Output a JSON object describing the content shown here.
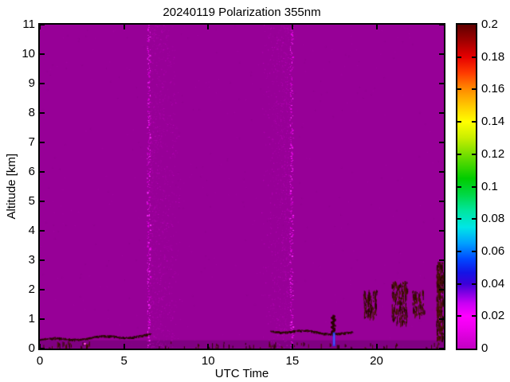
{
  "chart_data": {
    "type": "heatmap",
    "title": "20240119 Polarization 355nm",
    "xlabel": "UTC Time",
    "ylabel": "Altitude [km]",
    "xlim": [
      0,
      24
    ],
    "ylim": [
      0,
      11
    ],
    "xticks": [
      0,
      5,
      10,
      15,
      20
    ],
    "yticks": [
      0,
      1,
      2,
      3,
      4,
      5,
      6,
      7,
      8,
      9,
      10,
      11
    ],
    "grid": false,
    "legend": "none",
    "background_value_color": "#970097",
    "colorbar": {
      "position": "right",
      "range": [
        0,
        0.2
      ],
      "tick_values": [
        0,
        0.02,
        0.04,
        0.06,
        0.08,
        0.1,
        0.12,
        0.14,
        0.16,
        0.18,
        0.2
      ],
      "tick_labels": [
        "0",
        "0.02",
        "0.04",
        "0.06",
        "0.08",
        "0.1",
        "0.12",
        "0.14",
        "0.16",
        "0.18",
        "0.2"
      ],
      "stops": [
        [
          0.0,
          "#c200c2"
        ],
        [
          0.013,
          "#ee00ee"
        ],
        [
          0.02,
          "#ff00ff"
        ],
        [
          0.028,
          "#c800f4"
        ],
        [
          0.034,
          "#8400e4"
        ],
        [
          0.04,
          "#3c00d8"
        ],
        [
          0.047,
          "#1414e6"
        ],
        [
          0.055,
          "#0046ff"
        ],
        [
          0.065,
          "#00a0ff"
        ],
        [
          0.075,
          "#00e6e6"
        ],
        [
          0.085,
          "#00e6a0"
        ],
        [
          0.095,
          "#00d846"
        ],
        [
          0.105,
          "#00cc00"
        ],
        [
          0.118,
          "#66dc00"
        ],
        [
          0.13,
          "#c8ee00"
        ],
        [
          0.14,
          "#ffff00"
        ],
        [
          0.15,
          "#ffc800"
        ],
        [
          0.16,
          "#ff8c00"
        ],
        [
          0.17,
          "#ff3c00"
        ],
        [
          0.18,
          "#e60000"
        ],
        [
          0.19,
          "#a00000"
        ],
        [
          0.2,
          "#600000"
        ]
      ]
    },
    "features": {
      "bottom_band": {
        "t0": 0,
        "t1": 24,
        "alt_top": 0.28,
        "color": "rgba(50,0,60,0.22)"
      },
      "noise_streaks": [
        {
          "t": 6.45,
          "noise_side": "right",
          "noise_extent_h": 1.9,
          "bright_colors": [
            "#e600e6",
            "#ff2bff",
            "#c400c4"
          ]
        },
        {
          "t": 14.92,
          "noise_side": "left",
          "noise_extent_h": 1.7,
          "bright_colors": [
            "#e600e6",
            "#ff2bff",
            "#c400c4"
          ]
        }
      ],
      "surface_lines": [
        {
          "t0": 0,
          "t1": 6.55,
          "alt_start": 0.3,
          "alt_end": 0.46,
          "color": "#2e0b00"
        },
        {
          "t0": 13.7,
          "t1": 18.6,
          "alt_start": 0.62,
          "alt_end": 0.52,
          "color": "#2e0b00"
        }
      ],
      "dark_blob": {
        "t": 17.4,
        "alt0": 0.5,
        "alt1": 1.15,
        "color": "#2a0300"
      },
      "blue_spike": {
        "t": 17.45,
        "alt0": 0.08,
        "alt1": 0.55,
        "color": "#2a3cee",
        "core": "#5a6aff"
      },
      "pink_dot": {
        "t": 2.65,
        "alt": 0.19,
        "color": "#ff50d8"
      },
      "scribble_colors": [
        "#3a0d00",
        "#4a1500",
        "#2a0600"
      ],
      "scribble_clusters": [
        {
          "t0": 19.2,
          "t1": 20.0,
          "alt0": 1.1,
          "alt1": 2.0,
          "n": 90
        },
        {
          "t0": 20.9,
          "t1": 21.8,
          "alt0": 0.9,
          "alt1": 2.3,
          "n": 160
        },
        {
          "t0": 22.1,
          "t1": 22.8,
          "alt0": 1.2,
          "alt1": 2.0,
          "n": 70
        },
        {
          "t0": 23.55,
          "t1": 23.95,
          "alt0": 0.35,
          "alt1": 2.95,
          "n": 220
        },
        {
          "t0": 0.2,
          "t1": 3.0,
          "alt0": 0.05,
          "alt1": 0.25,
          "n": 25
        },
        {
          "t0": 7.0,
          "t1": 24.0,
          "alt0": 0.04,
          "alt1": 0.24,
          "n": 60
        }
      ]
    }
  }
}
